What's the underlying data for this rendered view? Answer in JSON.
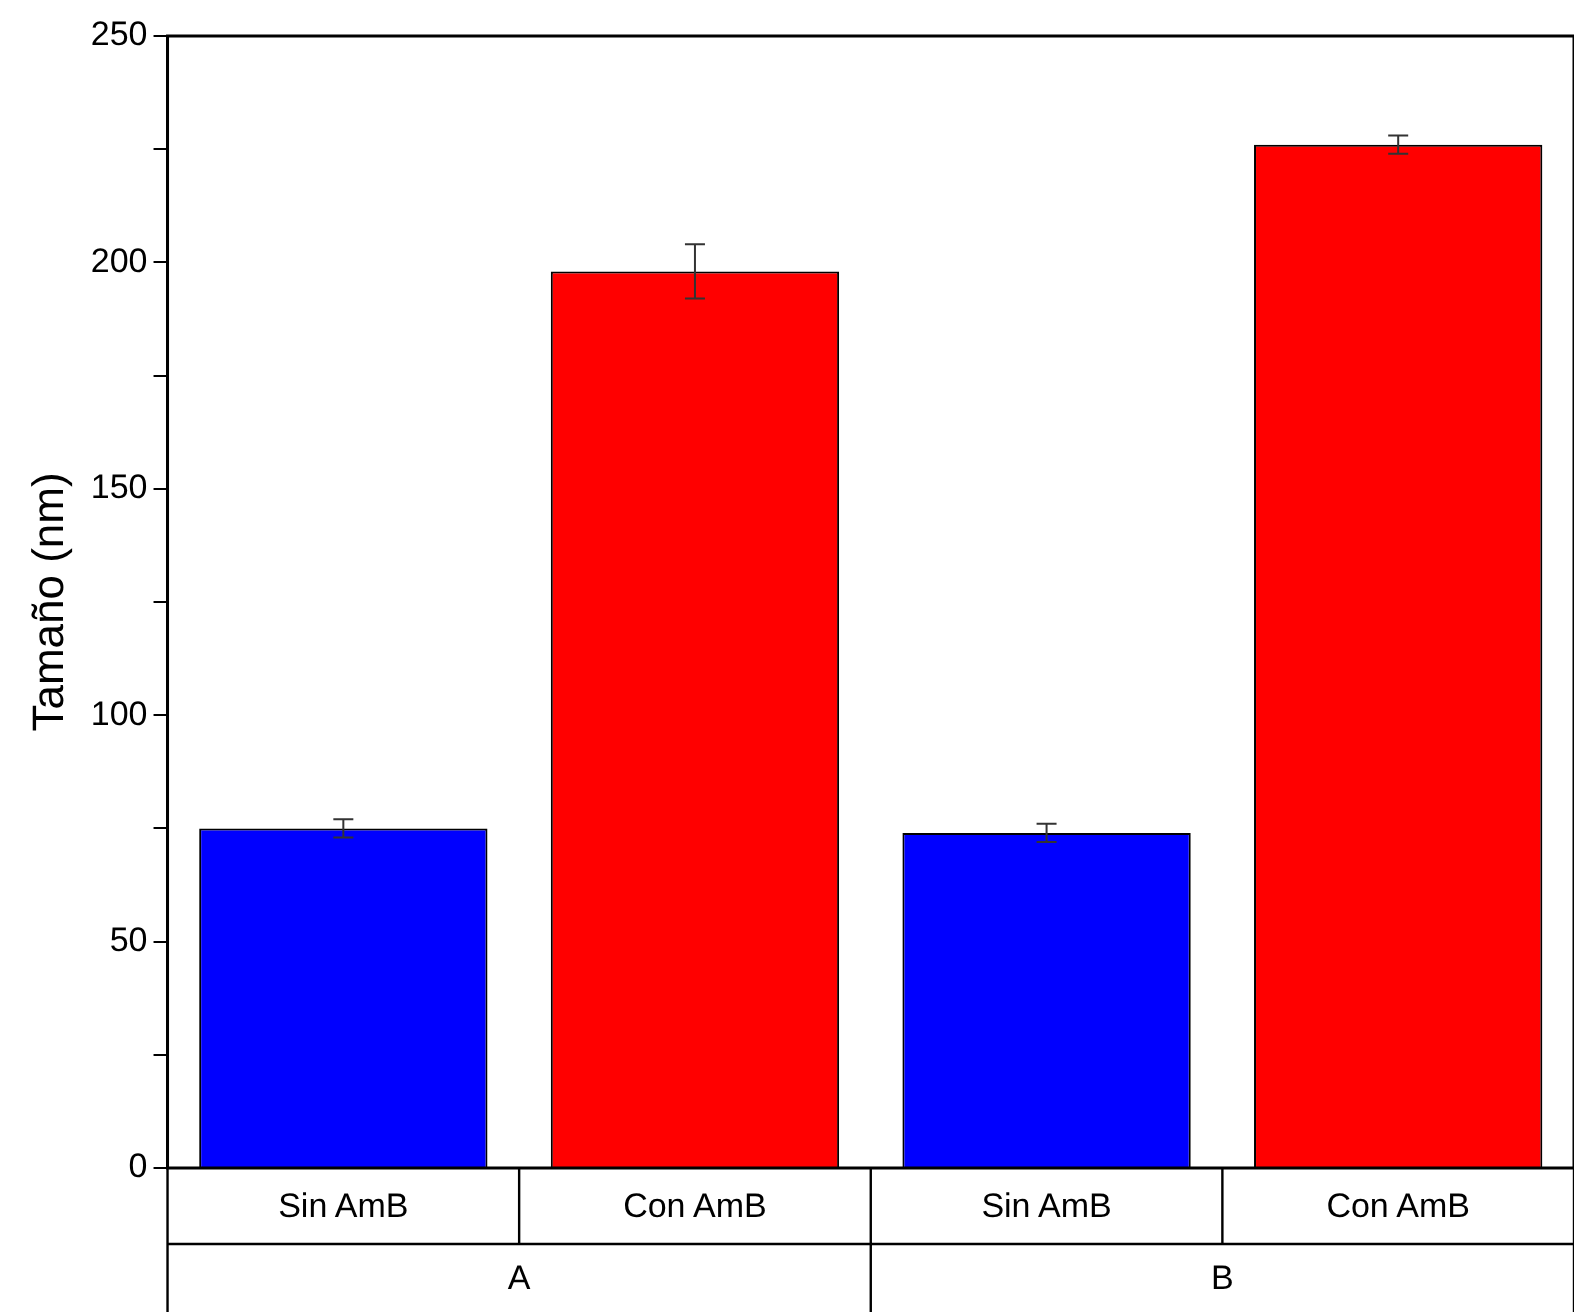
{
  "chart_data": {
    "type": "bar",
    "ylabel": "Tamaño (nm)",
    "categories": [
      "Sin AmB",
      "Con AmB",
      "Sin AmB",
      "Con AmB"
    ],
    "values": [
      75,
      198,
      74,
      226
    ],
    "errors": [
      2,
      6,
      2,
      2
    ],
    "colors": [
      "#0000ff",
      "#ff0000",
      "#0000ff",
      "#ff0000"
    ],
    "ylim": [
      0,
      250
    ],
    "yticks": [
      0,
      {
        "value": 25,
        "label": null
      },
      50,
      {
        "value": 75,
        "label": null
      },
      100,
      {
        "value": 125,
        "label": null
      },
      150,
      {
        "value": 175,
        "label": null
      },
      200,
      {
        "value": 225,
        "label": null
      },
      250
    ],
    "annotations": [
      "A",
      "B"
    ],
    "grid": false,
    "legend": false
  }
}
